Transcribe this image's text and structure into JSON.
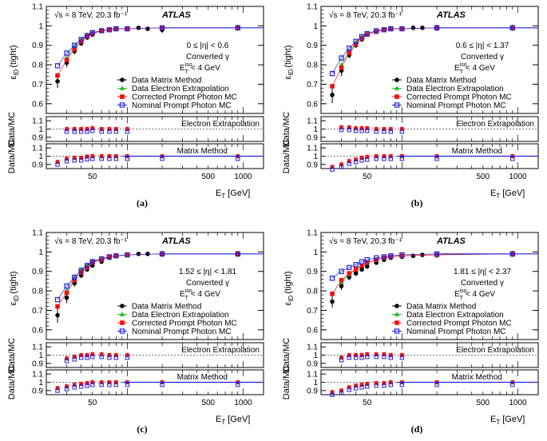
{
  "figure_labels": {
    "energy_label": "√s = 8 TeV, 20.3 fb⁻¹",
    "atlas": "ATLAS",
    "y_title": "ε",
    "y_title_sub": "ID",
    "y_title_suffix": "(tight)",
    "ratio_ytitle": "Data/MC",
    "x_title": "E",
    "x_title_sub": "T",
    "x_title_suffix": "[GeV]",
    "converted": "Converted γ",
    "iso_cut": "E",
    "iso_cut_sub": "T",
    "iso_cut_sup": "iso",
    "iso_cut_suffix": "< 4 GeV",
    "electron_extrapolation": "Electron Extrapolation",
    "matrix_method": "Matrix Method"
  },
  "legend": [
    {
      "name": "Data Matrix Method",
      "color": "#000000",
      "marker": "circle"
    },
    {
      "name": "Data Electron Extrapolation",
      "color": "#22bb22",
      "marker": "triangle"
    },
    {
      "name": "Corrected Prompt Photon MC",
      "color": "#ee1111",
      "marker": "square"
    },
    {
      "name": "Nominal Prompt Photon MC",
      "color": "#2222dd",
      "marker": "open-square"
    }
  ],
  "chart_data": [
    {
      "type": "scatter",
      "panel": "(a)",
      "eta_range": "0 ≤ |η| < 0.6",
      "x_scale": "log",
      "xlim": [
        20,
        1500
      ],
      "ylim": [
        0.55,
        1.1
      ],
      "x_ticks": [
        "50",
        "500",
        "1000"
      ],
      "y_ticks": [
        "0.6",
        "0.7",
        "0.8",
        "0.9",
        "1",
        "1.1"
      ],
      "ratio_ticks": [
        "0.9",
        "1",
        "1.1"
      ],
      "legend_position": "bottom-right",
      "series": [
        {
          "name": "Data Matrix Method",
          "x": [
            25,
            30,
            35,
            40,
            45,
            50,
            60,
            70,
            80,
            100,
            125,
            150,
            200,
            900
          ],
          "y": [
            0.715,
            0.81,
            0.87,
            0.91,
            0.94,
            0.955,
            0.975,
            0.98,
            0.985,
            0.985,
            0.99,
            0.985,
            0.98,
            0.99
          ]
        },
        {
          "name": "Data Electron Extrapolation",
          "x": [
            30,
            35,
            40,
            45,
            50,
            60,
            70,
            80,
            100
          ],
          "y": [
            0.835,
            0.895,
            0.93,
            0.955,
            0.965,
            0.975,
            0.98,
            0.985,
            0.985
          ]
        },
        {
          "name": "Corrected Prompt Photon MC",
          "x": [
            25,
            30,
            35,
            40,
            45,
            50,
            60,
            70,
            80,
            100,
            200,
            900
          ],
          "y": [
            0.745,
            0.825,
            0.88,
            0.92,
            0.945,
            0.96,
            0.975,
            0.98,
            0.985,
            0.985,
            0.99,
            0.99
          ]
        },
        {
          "name": "Nominal Prompt Photon MC",
          "x": [
            25,
            30,
            35,
            40,
            45,
            50,
            60,
            70,
            80,
            100,
            200,
            900
          ],
          "y": [
            0.795,
            0.86,
            0.9,
            0.93,
            0.95,
            0.965,
            0.975,
            0.98,
            0.985,
            0.985,
            0.99,
            0.99
          ]
        }
      ],
      "ratio_ee": {
        "x": [
          30,
          35,
          40,
          45,
          50,
          60,
          70,
          80,
          100
        ],
        "y": [
          1.0,
          1.0,
          1.0,
          1.0,
          1.01,
          1.0,
          1.0,
          1.0,
          1.0
        ]
      },
      "ratio_mm": {
        "x": [
          25,
          30,
          35,
          40,
          45,
          50,
          60,
          70,
          80,
          100,
          200,
          900
        ],
        "y": [
          0.93,
          0.97,
          0.98,
          0.98,
          0.995,
          1.0,
          1.0,
          1.0,
          1.0,
          1.0,
          1.0,
          1.0
        ]
      }
    },
    {
      "type": "scatter",
      "panel": "(b)",
      "eta_range": "0.6 ≤ |η| < 1.37",
      "x_scale": "log",
      "xlim": [
        20,
        1500
      ],
      "ylim": [
        0.55,
        1.1
      ],
      "x_ticks": [
        "50",
        "500",
        "1000"
      ],
      "y_ticks": [
        "0.6",
        "0.7",
        "0.8",
        "0.9",
        "1",
        "1.1"
      ],
      "ratio_ticks": [
        "0.9",
        "1",
        "1.1"
      ],
      "legend_position": "bottom-right",
      "series": [
        {
          "name": "Data Matrix Method",
          "x": [
            25,
            30,
            35,
            40,
            45,
            50,
            60,
            70,
            80,
            100,
            125,
            150,
            200,
            900
          ],
          "y": [
            0.645,
            0.77,
            0.85,
            0.9,
            0.93,
            0.955,
            0.97,
            0.98,
            0.985,
            0.985,
            0.99,
            0.99,
            0.99,
            0.99
          ]
        },
        {
          "name": "Data Electron Extrapolation",
          "x": [
            30,
            35,
            40,
            45,
            50,
            60,
            70,
            80,
            100
          ],
          "y": [
            0.8,
            0.87,
            0.915,
            0.945,
            0.96,
            0.975,
            0.98,
            0.985,
            0.985
          ]
        },
        {
          "name": "Corrected Prompt Photon MC",
          "x": [
            25,
            30,
            35,
            40,
            45,
            50,
            60,
            70,
            80,
            100,
            200,
            900
          ],
          "y": [
            0.69,
            0.785,
            0.86,
            0.905,
            0.935,
            0.955,
            0.97,
            0.98,
            0.985,
            0.985,
            0.99,
            0.99
          ]
        },
        {
          "name": "Nominal Prompt Photon MC",
          "x": [
            25,
            30,
            35,
            40,
            45,
            50,
            60,
            70,
            80,
            100,
            200,
            900
          ],
          "y": [
            0.755,
            0.835,
            0.885,
            0.92,
            0.945,
            0.96,
            0.975,
            0.98,
            0.985,
            0.985,
            0.99,
            0.99
          ]
        }
      ],
      "ratio_ee": {
        "x": [
          30,
          35,
          40,
          45,
          50,
          60,
          70,
          80,
          100
        ],
        "y": [
          1.02,
          1.02,
          1.01,
          1.01,
          1.01,
          1.0,
          1.0,
          1.0,
          1.0
        ]
      },
      "ratio_mm": {
        "x": [
          25,
          30,
          35,
          40,
          45,
          50,
          60,
          70,
          80,
          100,
          200,
          900
        ],
        "y": [
          0.87,
          0.9,
          0.94,
          0.96,
          0.98,
          0.99,
          1.0,
          1.0,
          1.0,
          1.0,
          1.0,
          1.0
        ]
      }
    },
    {
      "type": "scatter",
      "panel": "(c)",
      "eta_range": "1.52 ≤ |η| < 1.81",
      "x_scale": "log",
      "xlim": [
        20,
        1500
      ],
      "ylim": [
        0.55,
        1.1
      ],
      "x_ticks": [
        "50",
        "500",
        "1000"
      ],
      "y_ticks": [
        "0.6",
        "0.7",
        "0.8",
        "0.9",
        "1",
        "1.1"
      ],
      "ratio_ticks": [
        "0.9",
        "1",
        "1.1"
      ],
      "legend_position": "bottom-right",
      "series": [
        {
          "name": "Data Matrix Method",
          "x": [
            25,
            30,
            35,
            40,
            45,
            50,
            60,
            70,
            80,
            100,
            125,
            150,
            200,
            900
          ],
          "y": [
            0.675,
            0.765,
            0.84,
            0.88,
            0.91,
            0.93,
            0.95,
            0.97,
            0.98,
            0.985,
            0.99,
            0.99,
            0.99,
            0.99
          ]
        },
        {
          "name": "Data Electron Extrapolation",
          "x": [
            30,
            35,
            40,
            45,
            50,
            60,
            70,
            80,
            100
          ],
          "y": [
            0.8,
            0.87,
            0.91,
            0.935,
            0.955,
            0.965,
            0.975,
            0.98,
            0.985
          ]
        },
        {
          "name": "Corrected Prompt Photon MC",
          "x": [
            25,
            30,
            35,
            40,
            45,
            50,
            60,
            70,
            80,
            100,
            200,
            900
          ],
          "y": [
            0.72,
            0.79,
            0.855,
            0.895,
            0.92,
            0.945,
            0.96,
            0.975,
            0.98,
            0.985,
            0.99,
            0.99
          ]
        },
        {
          "name": "Nominal Prompt Photon MC",
          "x": [
            25,
            30,
            35,
            40,
            45,
            50,
            60,
            70,
            80,
            100,
            200,
            900
          ],
          "y": [
            0.755,
            0.825,
            0.87,
            0.905,
            0.93,
            0.95,
            0.965,
            0.975,
            0.98,
            0.985,
            0.99,
            0.99
          ]
        }
      ],
      "ratio_ee": {
        "x": [
          30,
          35,
          40,
          45,
          50,
          60,
          70,
          80,
          100
        ],
        "y": [
          0.96,
          0.98,
          1.0,
          1.0,
          1.01,
          1.01,
          1.0,
          1.0,
          1.0
        ]
      },
      "ratio_mm": {
        "x": [
          25,
          30,
          35,
          40,
          45,
          50,
          60,
          70,
          80,
          100,
          200,
          900
        ],
        "y": [
          0.93,
          0.95,
          0.97,
          0.98,
          0.99,
          1.0,
          1.0,
          1.0,
          1.0,
          1.0,
          1.0,
          1.0
        ]
      }
    },
    {
      "type": "scatter",
      "panel": "(d)",
      "eta_range": "1.81 ≤ |η| < 2.37",
      "x_scale": "log",
      "xlim": [
        20,
        1500
      ],
      "ylim": [
        0.55,
        1.1
      ],
      "x_ticks": [
        "50",
        "500",
        "1000"
      ],
      "y_ticks": [
        "0.6",
        "0.7",
        "0.8",
        "0.9",
        "1",
        "1.1"
      ],
      "ratio_ticks": [
        "0.9",
        "1",
        "1.1"
      ],
      "legend_position": "bottom-right",
      "series": [
        {
          "name": "Data Matrix Method",
          "x": [
            25,
            30,
            35,
            40,
            45,
            50,
            60,
            70,
            80,
            100,
            125,
            150,
            200,
            900
          ],
          "y": [
            0.745,
            0.825,
            0.87,
            0.89,
            0.91,
            0.925,
            0.945,
            0.96,
            0.97,
            0.975,
            0.98,
            0.985,
            0.985,
            0.99
          ]
        },
        {
          "name": "Data Electron Extrapolation",
          "x": [
            30,
            35,
            40,
            45,
            50,
            60,
            70,
            80,
            100
          ],
          "y": [
            0.845,
            0.885,
            0.91,
            0.93,
            0.945,
            0.96,
            0.97,
            0.975,
            0.98
          ]
        },
        {
          "name": "Corrected Prompt Photon MC",
          "x": [
            25,
            30,
            35,
            40,
            45,
            50,
            60,
            70,
            80,
            100,
            200,
            900
          ],
          "y": [
            0.785,
            0.855,
            0.89,
            0.91,
            0.93,
            0.945,
            0.96,
            0.97,
            0.975,
            0.98,
            0.985,
            0.99
          ]
        },
        {
          "name": "Nominal Prompt Photon MC",
          "x": [
            25,
            30,
            35,
            40,
            45,
            50,
            60,
            70,
            80,
            100,
            200,
            900
          ],
          "y": [
            0.865,
            0.9,
            0.92,
            0.935,
            0.95,
            0.96,
            0.97,
            0.975,
            0.98,
            0.985,
            0.99,
            0.99
          ]
        }
      ],
      "ratio_ee": {
        "x": [
          30,
          35,
          40,
          45,
          50,
          60,
          70,
          80,
          100
        ],
        "y": [
          0.97,
          1.0,
          1.0,
          1.0,
          1.01,
          1.01,
          1.01,
          1.0,
          1.0
        ]
      },
      "ratio_mm": {
        "x": [
          25,
          30,
          35,
          40,
          45,
          50,
          60,
          70,
          80,
          100,
          200,
          900
        ],
        "y": [
          0.88,
          0.9,
          0.94,
          0.96,
          0.97,
          0.98,
          0.99,
          0.99,
          1.0,
          1.0,
          1.0,
          1.0
        ]
      }
    }
  ]
}
